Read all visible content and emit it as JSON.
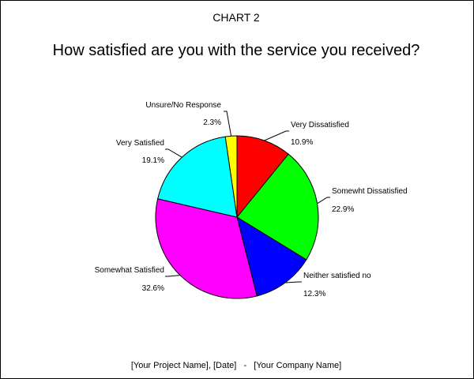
{
  "chart_data": {
    "type": "pie",
    "chart_label": "CHART 2",
    "title": "How satisfied are you with the service you received?",
    "footer": "[Your Project Name], [Date]   -   [Your Company Name]",
    "slices": [
      {
        "label": "Very Dissatisfied",
        "value": 10.9,
        "value_label": "10.9%",
        "color": "#ff0000"
      },
      {
        "label": "Somewht Dissatisfied",
        "value": 22.9,
        "value_label": "22.9%",
        "color": "#00ff00"
      },
      {
        "label": "Neither satisfied no",
        "value": 12.3,
        "value_label": "12.3%",
        "color": "#0000ff"
      },
      {
        "label": "Somewhat Satisfied",
        "value": 32.6,
        "value_label": "32.6%",
        "color": "#ff00ff"
      },
      {
        "label": "Very Satisfied",
        "value": 19.1,
        "value_label": "19.1%",
        "color": "#00ffff"
      },
      {
        "label": "Unsure/No Response",
        "value": 2.3,
        "value_label": "2.3%",
        "color": "#ffff00"
      }
    ],
    "start_angle_deg": 0,
    "direction": "clockwise"
  }
}
